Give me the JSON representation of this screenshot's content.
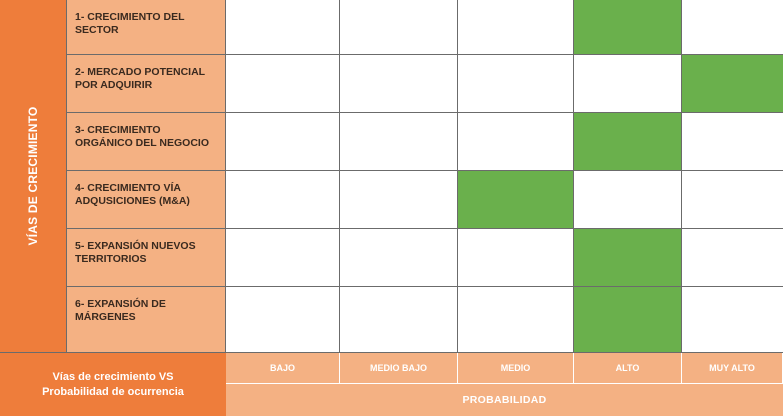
{
  "side_label": "VÍAS DE CRECIMIENTO",
  "rows": [
    {
      "label_line1": "1- CRECIMIENTO DEL",
      "label_line2": "SECTOR",
      "selected": "ALTO"
    },
    {
      "label_line1": "2- MERCADO POTENCIAL",
      "label_line2": "POR ADQUIRIR",
      "selected": "MUY ALTO"
    },
    {
      "label_line1": "3- CRECIMIENTO",
      "label_line2": "ORGÁNICO DEL NEGOCIO",
      "selected": "ALTO"
    },
    {
      "label_line1": "4- CRECIMIENTO VÍA",
      "label_line2": "ADQUSICIONES (M&A)",
      "selected": "MEDIO"
    },
    {
      "label_line1": "5- EXPANSIÓN NUEVOS",
      "label_line2": "TERRITORIOS",
      "selected": "ALTO"
    },
    {
      "label_line1": "6- EXPANSIÓN DE",
      "label_line2": "MÁRGENES",
      "selected": "ALTO"
    }
  ],
  "levels": [
    "BAJO",
    "MEDIO BAJO",
    "MEDIO",
    "ALTO",
    "MUY ALTO"
  ],
  "footer": {
    "line1": "Vías de crecimiento VS",
    "line2": "Probabilidad de ocurrencia"
  },
  "probability_label": "PROBABILIDAD",
  "colors": {
    "orange": "#ee7d3b",
    "light_orange": "#f4b183",
    "green": "#6ab04c",
    "grid": "#6b6b6b"
  }
}
